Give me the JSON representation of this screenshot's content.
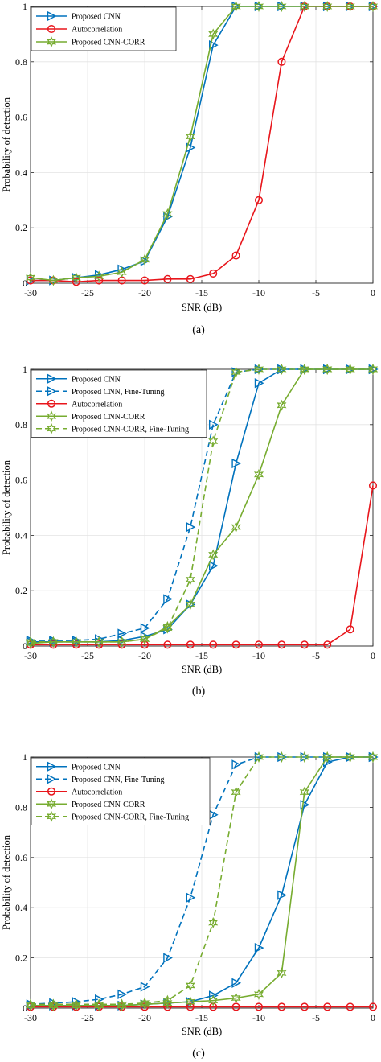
{
  "figure": {
    "x_ticks": [
      -30,
      -25,
      -20,
      -15,
      -10,
      -5,
      0
    ],
    "y_ticks": [
      0,
      0.2,
      0.4,
      0.6,
      0.8,
      1
    ],
    "x_tick_labels": [
      "-30",
      "-25",
      "-20",
      "-15",
      "-10",
      "-5",
      "0"
    ],
    "y_tick_labels": [
      "0",
      "0.2",
      "0.4",
      "0.6",
      "0.8",
      "1"
    ]
  },
  "colors": {
    "cnn": "#0072BD",
    "autocorrelation": "#E8161C",
    "cnn_corr": "#77AC30"
  },
  "chart_data": [
    {
      "type": "line",
      "caption": "(a)",
      "xlabel": "SNR (dB)",
      "ylabel": "Probability of detection",
      "xlim": [
        -30,
        0
      ],
      "ylim": [
        0,
        1
      ],
      "grid": true,
      "legend_position": "top-left",
      "x": [
        -30,
        -28,
        -26,
        -24,
        -22,
        -20,
        -18,
        -16,
        -14,
        -12,
        -10,
        -8,
        -6,
        -4,
        -2,
        0
      ],
      "series": [
        {
          "name": "Proposed CNN",
          "color_key": "cnn",
          "marker": "triangle-right",
          "dashed": false,
          "values": [
            0.01,
            0.01,
            0.02,
            0.03,
            0.05,
            0.08,
            0.24,
            0.49,
            0.86,
            1,
            1,
            1,
            1,
            1,
            1,
            1
          ]
        },
        {
          "name": "Autocorrelation",
          "color_key": "autocorrelation",
          "marker": "circle",
          "dashed": false,
          "values": [
            0.01,
            0.01,
            0.005,
            0.01,
            0.01,
            0.01,
            0.015,
            0.015,
            0.035,
            0.1,
            0.3,
            0.8,
            1,
            1,
            1,
            1
          ]
        },
        {
          "name": "Proposed CNN-CORR",
          "color_key": "cnn_corr",
          "marker": "hexagram",
          "dashed": false,
          "values": [
            0.02,
            0.01,
            0.02,
            0.025,
            0.04,
            0.085,
            0.25,
            0.53,
            0.9,
            1,
            1,
            1,
            1,
            1,
            1,
            1
          ]
        }
      ]
    },
    {
      "type": "line",
      "caption": "(b)",
      "xlabel": "SNR (dB)",
      "ylabel": "Probability of detection",
      "xlim": [
        -30,
        0
      ],
      "ylim": [
        0,
        1
      ],
      "grid": true,
      "legend_position": "top-left",
      "x": [
        -30,
        -28,
        -26,
        -24,
        -22,
        -20,
        -18,
        -16,
        -14,
        -12,
        -10,
        -8,
        -6,
        -4,
        -2,
        0
      ],
      "series": [
        {
          "name": "Proposed CNN",
          "color_key": "cnn",
          "marker": "triangle-right",
          "dashed": false,
          "values": [
            0.015,
            0.015,
            0.015,
            0.015,
            0.02,
            0.035,
            0.06,
            0.15,
            0.29,
            0.66,
            0.95,
            1,
            1,
            1,
            1,
            1
          ]
        },
        {
          "name": "Proposed CNN, Fine-Tuning",
          "color_key": "cnn",
          "marker": "triangle-right",
          "dashed": true,
          "values": [
            0.02,
            0.02,
            0.02,
            0.025,
            0.045,
            0.065,
            0.17,
            0.43,
            0.8,
            0.99,
            1,
            1,
            1,
            1,
            1,
            1
          ]
        },
        {
          "name": "Autocorrelation",
          "color_key": "autocorrelation",
          "marker": "circle",
          "dashed": false,
          "values": [
            0.005,
            0.005,
            0.005,
            0.005,
            0.005,
            0.005,
            0.005,
            0.005,
            0.005,
            0.005,
            0.005,
            0.005,
            0.005,
            0.005,
            0.06,
            0.58
          ]
        },
        {
          "name": "Proposed CNN-CORR",
          "color_key": "cnn_corr",
          "marker": "hexagram",
          "dashed": false,
          "values": [
            0.01,
            0.015,
            0.015,
            0.015,
            0.015,
            0.025,
            0.07,
            0.15,
            0.33,
            0.43,
            0.62,
            0.87,
            1,
            1,
            1,
            1
          ]
        },
        {
          "name": "Proposed CNN-CORR, Fine-Tuning",
          "color_key": "cnn_corr",
          "marker": "hexagram",
          "dashed": true,
          "values": [
            0.015,
            0.015,
            0.015,
            0.015,
            0.015,
            0.025,
            0.065,
            0.24,
            0.74,
            0.99,
            1,
            1,
            1,
            1,
            1,
            1
          ]
        }
      ]
    },
    {
      "type": "line",
      "caption": "(c)",
      "xlabel": "SNR (dB)",
      "ylabel": "Probability of detection",
      "xlim": [
        -30,
        0
      ],
      "ylim": [
        0,
        1
      ],
      "grid": true,
      "legend_position": "top-left",
      "x": [
        -30,
        -28,
        -26,
        -24,
        -22,
        -20,
        -18,
        -16,
        -14,
        -12,
        -10,
        -8,
        -6,
        -4,
        -2,
        0
      ],
      "series": [
        {
          "name": "Proposed CNN",
          "color_key": "cnn",
          "marker": "triangle-right",
          "dashed": false,
          "values": [
            0.01,
            0.01,
            0.01,
            0.01,
            0.01,
            0.015,
            0.02,
            0.025,
            0.05,
            0.1,
            0.24,
            0.45,
            0.81,
            0.98,
            1,
            1
          ]
        },
        {
          "name": "Proposed CNN, Fine-Tuning",
          "color_key": "cnn",
          "marker": "triangle-right",
          "dashed": true,
          "values": [
            0.015,
            0.02,
            0.025,
            0.035,
            0.055,
            0.085,
            0.2,
            0.44,
            0.77,
            0.97,
            1,
            1,
            1,
            1,
            1,
            1
          ]
        },
        {
          "name": "Autocorrelation",
          "color_key": "autocorrelation",
          "marker": "circle",
          "dashed": false,
          "values": [
            0.005,
            0.005,
            0.005,
            0.005,
            0.005,
            0.005,
            0.005,
            0.005,
            0.005,
            0.005,
            0.005,
            0.005,
            0.005,
            0.005,
            0.005,
            0.005
          ]
        },
        {
          "name": "Proposed CNN-CORR",
          "color_key": "cnn_corr",
          "marker": "hexagram",
          "dashed": false,
          "values": [
            0.01,
            0.01,
            0.01,
            0.01,
            0.01,
            0.015,
            0.02,
            0.025,
            0.03,
            0.04,
            0.055,
            0.14,
            0.86,
            1,
            1,
            1
          ]
        },
        {
          "name": "Proposed CNN-CORR, Fine-Tuning",
          "color_key": "cnn_corr",
          "marker": "hexagram",
          "dashed": true,
          "values": [
            0.015,
            0.015,
            0.015,
            0.015,
            0.015,
            0.02,
            0.03,
            0.09,
            0.34,
            0.86,
            1,
            1,
            1,
            1,
            1,
            1
          ]
        }
      ]
    }
  ]
}
